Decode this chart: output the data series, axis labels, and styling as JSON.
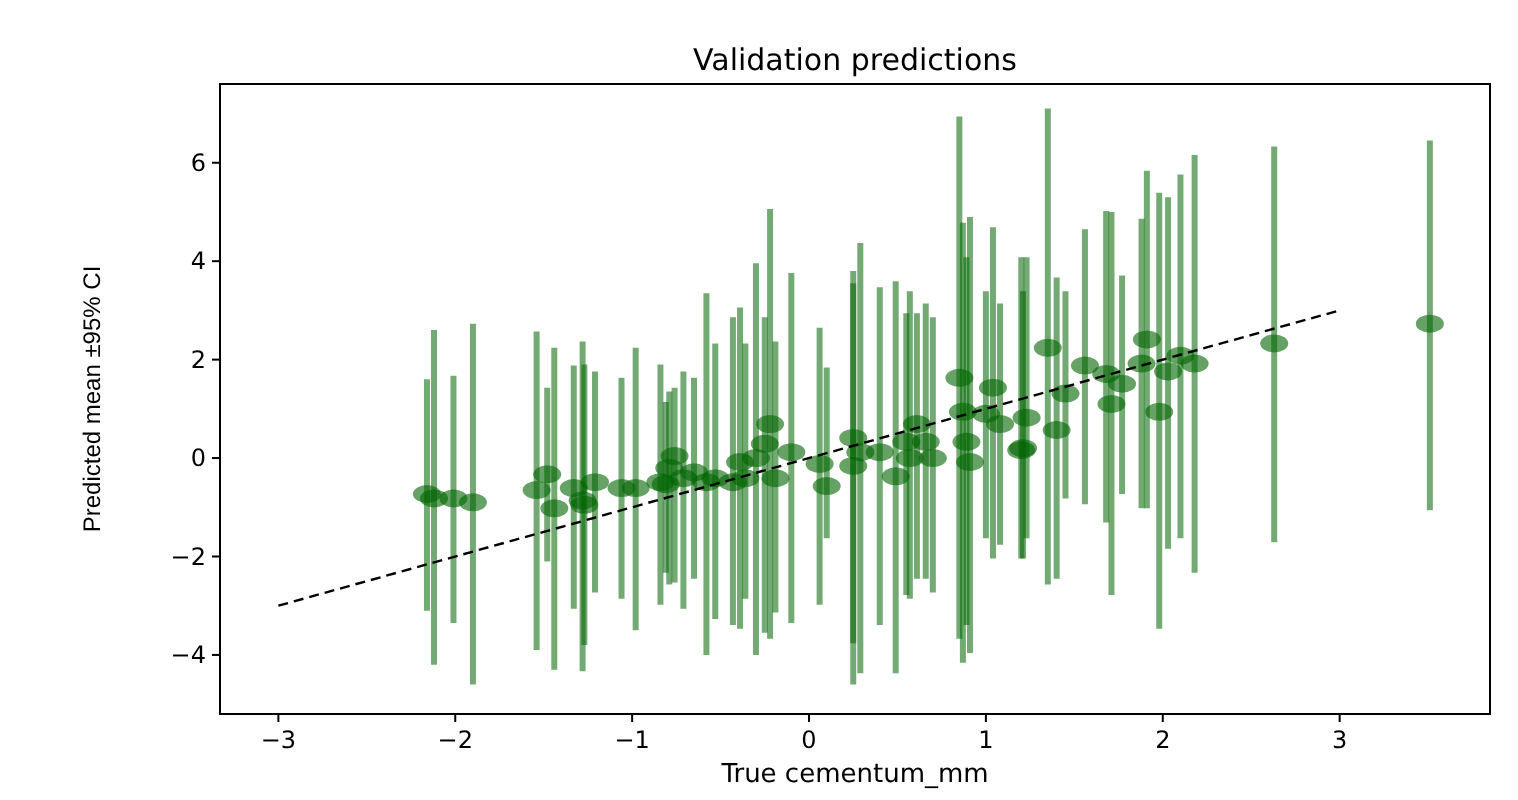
{
  "chart_data": {
    "type": "scatter",
    "title": "Validation predictions",
    "xlabel": "True cementum_mm",
    "ylabel": "Predicted mean ±95% CI",
    "xlim": [
      -3.33,
      3.85
    ],
    "ylim": [
      -5.2,
      7.6
    ],
    "xticks": [
      {
        "value": -3,
        "label": "−3"
      },
      {
        "value": -2,
        "label": "−2"
      },
      {
        "value": -1,
        "label": "−1"
      },
      0,
      1,
      2,
      3
    ],
    "yticks": [
      {
        "value": -4,
        "label": "−4"
      },
      {
        "value": -2,
        "label": "−2"
      },
      0,
      2,
      4,
      6
    ],
    "marker": "circle",
    "series": [
      {
        "color": "#006400",
        "x": [
          -2.16,
          -2.12,
          -2.01,
          -1.9,
          -1.54,
          -1.48,
          -1.44,
          -1.33,
          -1.28,
          -1.27,
          -1.21,
          -1.06,
          -0.98,
          -0.84,
          -0.79,
          -0.81,
          -0.76,
          -0.71,
          -0.65,
          -0.58,
          -0.53,
          -0.43,
          -0.39,
          -0.36,
          -0.3,
          -0.25,
          -0.22,
          -0.19,
          -0.1,
          0.06,
          0.1,
          0.25,
          0.25,
          0.29,
          0.4,
          0.49,
          0.55,
          0.57,
          0.61,
          0.66,
          0.7,
          0.85,
          0.87,
          0.89,
          0.91,
          1.04,
          1.0,
          1.08,
          1.21,
          1.23,
          1.35,
          1.4,
          1.2,
          1.45,
          1.56,
          1.68,
          1.71,
          1.77,
          1.88,
          1.91,
          1.98,
          2.03,
          2.1,
          2.18,
          2.63,
          3.51
        ],
        "values": [
          -0.73,
          -0.82,
          -0.82,
          -0.9,
          -0.65,
          -0.33,
          -1.02,
          -0.61,
          -0.86,
          -0.95,
          -0.49,
          -0.61,
          -0.61,
          -0.49,
          -0.2,
          -0.53,
          0.04,
          -0.41,
          -0.29,
          -0.49,
          -0.41,
          -0.49,
          -0.08,
          -0.41,
          0.0,
          0.29,
          0.69,
          -0.41,
          0.12,
          -0.12,
          -0.57,
          0.41,
          -0.16,
          0.12,
          0.12,
          -0.37,
          0.33,
          0.0,
          0.69,
          0.33,
          0.0,
          1.63,
          0.94,
          0.33,
          -0.08,
          1.43,
          0.9,
          0.69,
          0.2,
          0.82,
          2.24,
          0.57,
          0.16,
          1.31,
          1.88,
          1.71,
          1.1,
          1.51,
          1.92,
          2.41,
          0.94,
          1.76,
          2.08,
          1.92,
          2.33,
          2.73
        ],
        "errors": [
          [
            -3.1,
            1.6
          ],
          [
            -4.2,
            2.6
          ],
          [
            -3.35,
            1.67
          ],
          [
            -4.6,
            2.73
          ],
          [
            -3.9,
            2.57
          ],
          [
            -2.1,
            1.43
          ],
          [
            -4.3,
            2.24
          ],
          [
            -3.06,
            1.88
          ],
          [
            -4.33,
            2.37
          ],
          [
            -3.8,
            1.9
          ],
          [
            -2.73,
            1.76
          ],
          [
            -2.86,
            1.63
          ],
          [
            -3.5,
            2.24
          ],
          [
            -2.98,
            1.9
          ],
          [
            -2.57,
            1.35
          ],
          [
            -2.33,
            1.14
          ],
          [
            -2.53,
            1.43
          ],
          [
            -3.06,
            1.76
          ],
          [
            -2.45,
            1.63
          ],
          [
            -4.0,
            3.35
          ],
          [
            -3.27,
            2.33
          ],
          [
            -3.39,
            2.86
          ],
          [
            -3.47,
            3.06
          ],
          [
            -2.86,
            2.33
          ],
          [
            -4.0,
            3.96
          ],
          [
            -3.55,
            2.86
          ],
          [
            -3.67,
            5.06
          ],
          [
            -3.14,
            2.37
          ],
          [
            -3.35,
            3.76
          ],
          [
            -2.98,
            2.65
          ],
          [
            -1.63,
            1.84
          ],
          [
            -3.76,
            3.55
          ],
          [
            -4.6,
            3.8
          ],
          [
            -4.37,
            4.37
          ],
          [
            -3.39,
            3.47
          ],
          [
            -4.37,
            3.59
          ],
          [
            -2.78,
            2.94
          ],
          [
            -2.86,
            3.39
          ],
          [
            -2.45,
            2.94
          ],
          [
            -2.45,
            3.14
          ],
          [
            -2.73,
            2.86
          ],
          [
            -3.67,
            6.94
          ],
          [
            -4.16,
            4.78
          ],
          [
            -3.39,
            4.08
          ],
          [
            -3.96,
            4.9
          ],
          [
            -2.04,
            4.69
          ],
          [
            -1.63,
            3.39
          ],
          [
            -1.76,
            3.14
          ],
          [
            -2.04,
            3.39
          ],
          [
            -1.63,
            4.08
          ],
          [
            -2.57,
            7.1
          ],
          [
            -2.45,
            3.67
          ],
          [
            -2.04,
            4.08
          ],
          [
            -0.82,
            3.39
          ],
          [
            -0.94,
            4.65
          ],
          [
            -1.31,
            5.02
          ],
          [
            -2.78,
            5.0
          ],
          [
            -0.73,
            3.71
          ],
          [
            -1.02,
            4.86
          ],
          [
            -1.02,
            5.84
          ],
          [
            -3.47,
            5.39
          ],
          [
            -1.84,
            5.3
          ],
          [
            -1.63,
            5.76
          ],
          [
            -2.33,
            6.16
          ],
          [
            -1.71,
            6.33
          ],
          [
            -1.06,
            6.45
          ]
        ]
      },
      {
        "type": "line",
        "color": "#000000",
        "line_style": "dashed",
        "marker": "none",
        "x": [
          -3,
          3
        ],
        "values": [
          -3,
          3
        ]
      }
    ]
  }
}
